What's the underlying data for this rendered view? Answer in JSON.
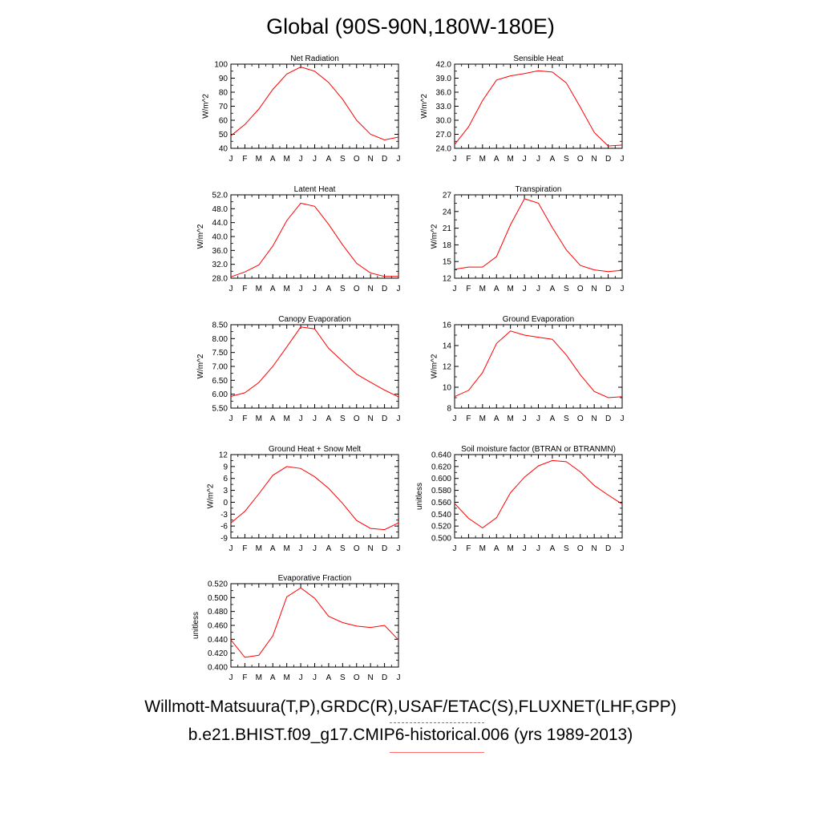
{
  "title": "Global (90S-90N,180W-180E)",
  "legend": {
    "obs": "Willmott-Matsuura(T,P),GRDC(R),USAF/ETAC(S),FLUXNET(LHF,GPP)",
    "model": "b.e21.BHIST.f09_g17.CMIP6-historical.006 (yrs 1989-2013)",
    "obs_color": "#6c6cf0",
    "model_color": "#ff0000"
  },
  "chart_data": [
    {
      "type": "line",
      "title": "Net Radiation",
      "ylabel": "W/m^2",
      "categories": [
        "J",
        "F",
        "M",
        "A",
        "M",
        "J",
        "J",
        "A",
        "S",
        "O",
        "N",
        "D",
        "J"
      ],
      "ylim": [
        40,
        100
      ],
      "yticks": [
        "40",
        "50",
        "60",
        "70",
        "80",
        "90",
        "100"
      ],
      "series": [
        {
          "values": [
            49,
            57,
            68,
            82,
            93,
            98,
            95,
            87,
            75,
            60,
            50,
            46,
            48
          ]
        }
      ]
    },
    {
      "type": "line",
      "title": "Sensible Heat",
      "ylabel": "W/m^2",
      "categories": [
        "J",
        "F",
        "M",
        "A",
        "M",
        "J",
        "J",
        "A",
        "S",
        "O",
        "N",
        "D",
        "J"
      ],
      "ylim": [
        24,
        42
      ],
      "yticks": [
        "24.0",
        "27.0",
        "30.0",
        "33.0",
        "36.0",
        "39.0",
        "42.0"
      ],
      "series": [
        {
          "values": [
            24.8,
            28.6,
            34.2,
            38.6,
            39.5,
            40.0,
            40.6,
            40.3,
            38.0,
            32.8,
            27.4,
            24.5,
            24.7
          ]
        }
      ]
    },
    {
      "type": "line",
      "title": "Latent Heat",
      "ylabel": "W/m^2",
      "categories": [
        "J",
        "F",
        "M",
        "A",
        "M",
        "J",
        "J",
        "A",
        "S",
        "O",
        "N",
        "D",
        "J"
      ],
      "ylim": [
        28,
        52
      ],
      "yticks": [
        "28.0",
        "32.0",
        "36.0",
        "40.0",
        "44.0",
        "48.0",
        "52.0"
      ],
      "series": [
        {
          "values": [
            28.4,
            29.8,
            31.8,
            37.3,
            44.6,
            49.6,
            48.7,
            43.5,
            37.6,
            32.3,
            29.5,
            28.5,
            28.5
          ]
        }
      ]
    },
    {
      "type": "line",
      "title": "Transpiration",
      "ylabel": "W/m^2",
      "categories": [
        "J",
        "F",
        "M",
        "A",
        "M",
        "J",
        "J",
        "A",
        "S",
        "O",
        "N",
        "D",
        "J"
      ],
      "ylim": [
        12,
        27
      ],
      "yticks": [
        "12",
        "15",
        "18",
        "21",
        "24",
        "27"
      ],
      "series": [
        {
          "values": [
            13.6,
            14.0,
            14.0,
            15.9,
            21.6,
            26.3,
            25.5,
            21.1,
            17.1,
            14.3,
            13.5,
            13.2,
            13.4
          ]
        }
      ]
    },
    {
      "type": "line",
      "title": "Canopy Evaporation",
      "ylabel": "W/m^2",
      "categories": [
        "J",
        "F",
        "M",
        "A",
        "M",
        "J",
        "J",
        "A",
        "S",
        "O",
        "N",
        "D",
        "J"
      ],
      "ylim": [
        5.5,
        8.5
      ],
      "yticks": [
        "5.50",
        "6.00",
        "6.50",
        "7.00",
        "7.50",
        "8.00",
        "8.50"
      ],
      "series": [
        {
          "values": [
            5.92,
            6.05,
            6.42,
            7.0,
            7.7,
            8.42,
            8.35,
            7.65,
            7.18,
            6.72,
            6.43,
            6.15,
            5.9
          ]
        }
      ]
    },
    {
      "type": "line",
      "title": "Ground Evaporation",
      "ylabel": "W/m^2",
      "categories": [
        "J",
        "F",
        "M",
        "A",
        "M",
        "J",
        "J",
        "A",
        "S",
        "O",
        "N",
        "D",
        "J"
      ],
      "ylim": [
        8,
        16
      ],
      "yticks": [
        "8",
        "10",
        "12",
        "14",
        "16"
      ],
      "series": [
        {
          "values": [
            9.1,
            9.7,
            11.4,
            14.2,
            15.4,
            15.0,
            14.8,
            14.6,
            13.1,
            11.2,
            9.6,
            9.0,
            9.1
          ]
        }
      ]
    },
    {
      "type": "line",
      "title": "Ground Heat + Snow Melt",
      "ylabel": "W/m^2",
      "categories": [
        "J",
        "F",
        "M",
        "A",
        "M",
        "J",
        "J",
        "A",
        "S",
        "O",
        "N",
        "D",
        "J"
      ],
      "ylim": [
        -9,
        12
      ],
      "yticks": [
        "-9",
        "-6",
        "-3",
        "0",
        "3",
        "6",
        "9",
        "12"
      ],
      "series": [
        {
          "values": [
            -5.2,
            -2.3,
            2.1,
            6.8,
            9.0,
            8.5,
            6.4,
            3.5,
            -0.3,
            -4.6,
            -6.6,
            -6.9,
            -5.2
          ]
        }
      ]
    },
    {
      "type": "line",
      "title": "Soil moisture factor (BTRAN or BTRANMN)",
      "ylabel": "unitless",
      "categories": [
        "J",
        "F",
        "M",
        "A",
        "M",
        "J",
        "J",
        "A",
        "S",
        "O",
        "N",
        "D",
        "J"
      ],
      "ylim": [
        0.5,
        0.64
      ],
      "yticks": [
        "0.500",
        "0.520",
        "0.540",
        "0.560",
        "0.580",
        "0.600",
        "0.620",
        "0.640"
      ],
      "series": [
        {
          "values": [
            0.558,
            0.533,
            0.517,
            0.534,
            0.576,
            0.602,
            0.621,
            0.63,
            0.628,
            0.611,
            0.588,
            0.572,
            0.557
          ]
        }
      ]
    },
    {
      "type": "line",
      "title": "Evaporative Fraction",
      "ylabel": "unitless",
      "categories": [
        "J",
        "F",
        "M",
        "A",
        "M",
        "J",
        "J",
        "A",
        "S",
        "O",
        "N",
        "D",
        "J"
      ],
      "ylim": [
        0.4,
        0.52
      ],
      "yticks": [
        "0.400",
        "0.420",
        "0.440",
        "0.460",
        "0.480",
        "0.500",
        "0.520"
      ],
      "series": [
        {
          "values": [
            0.439,
            0.414,
            0.417,
            0.445,
            0.501,
            0.514,
            0.499,
            0.473,
            0.464,
            0.459,
            0.457,
            0.46,
            0.439
          ]
        }
      ]
    }
  ]
}
